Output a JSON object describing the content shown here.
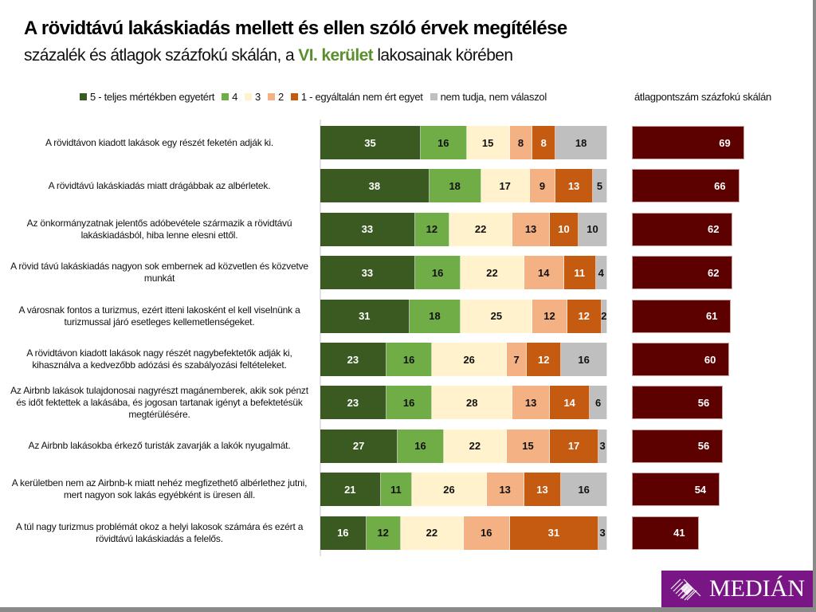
{
  "title": "A rövidtávú lakáskiadás mellett és ellen szóló érvek megítélése",
  "subtitle": {
    "before": "százalék és átlagok százfokú skálán, a ",
    "highlight": "VI. kerület",
    "after": " lakosainak körében"
  },
  "logo": {
    "text": "MEDIÁN",
    "icon": "diamond-stripes-logo-icon",
    "bg": "#7a1586"
  },
  "chart_data": [
    {
      "type": "bar",
      "orientation": "horizontal",
      "stacked": true,
      "percent": true,
      "title": "A rövidtávú lakáskiadás mellett és ellen szóló érvek megítélése",
      "xlabel": "",
      "ylabel": "",
      "xlim": [
        0,
        100
      ],
      "legend_position": "top",
      "grid": false,
      "categories": [
        "A rövidtávon kiadott lakások egy részét feketén adják ki.",
        "A rövidtávú lakáskiadás miatt drágábbak az albérletek.",
        "Az önkormányzatnak jelentős adóbevétele származik a rövidtávú lakáskiadásból, hiba lenne elesni ettől.",
        "A rövid távú lakáskiadás nagyon sok embernek ad közvetlen és közvetve munkát",
        "A városnak fontos a turizmus, ezért itteni lakosként el kell viselnünk a turizmussal járó esetleges kellemetlenségeket.",
        "A rövidtávon kiadott lakások nagy részét nagybefektetők adják ki, kihasználva a kedvezőbb adózási és szabályozási feltételeket.",
        "Az Airbnb lakások tulajdonosai nagyrészt magánemberek, akik sok pénzt és időt fektettek a lakásába, és jogosan tartanak igényt a befektetésük megtérülésére.",
        "Az Airbnb lakásokba érkező turisták zavarják a lakók nyugalmát.",
        "A kerületben nem az Airbnb-k miatt nehéz megfizethető albérlethez jutni, mert nagyon sok lakás egyébként is üresen áll.",
        "A túl nagy turizmus problémát okoz a helyi lakosok számára és ezért a rövidtávú lakáskiadás a felelős."
      ],
      "series": [
        {
          "name": "5 - teljes mértékben egyetért",
          "color": "#3a5a22",
          "text_color": "#ffffff",
          "values": [
            35,
            38,
            33,
            33,
            31,
            23,
            23,
            27,
            21,
            16
          ]
        },
        {
          "name": "4",
          "color": "#70ad47",
          "text_color": "#111111",
          "values": [
            16,
            18,
            12,
            16,
            18,
            16,
            16,
            16,
            11,
            12
          ]
        },
        {
          "name": "3",
          "color": "#fff2cc",
          "text_color": "#111111",
          "values": [
            15,
            17,
            22,
            22,
            25,
            26,
            28,
            22,
            26,
            22
          ]
        },
        {
          "name": "2",
          "color": "#f4b183",
          "text_color": "#111111",
          "values": [
            8,
            9,
            13,
            14,
            12,
            7,
            13,
            15,
            13,
            16
          ]
        },
        {
          "name": "1 - egyáltalán nem ért egyet",
          "color": "#c55a11",
          "text_color": "#ffffff",
          "values": [
            8,
            13,
            10,
            11,
            12,
            12,
            14,
            17,
            13,
            31
          ]
        },
        {
          "name": "nem tudja, nem válaszol",
          "color": "#bfbfbf",
          "text_color": "#111111",
          "values": [
            18,
            5,
            10,
            4,
            2,
            16,
            6,
            3,
            16,
            3
          ]
        }
      ]
    },
    {
      "type": "bar",
      "orientation": "horizontal",
      "title": "átlagpontszám százfokú skálán",
      "xlim": [
        0,
        100
      ],
      "color": "#5c0000",
      "categories_ref": "same as first chart",
      "values": [
        69,
        66,
        62,
        62,
        61,
        60,
        56,
        56,
        54,
        41
      ]
    }
  ]
}
